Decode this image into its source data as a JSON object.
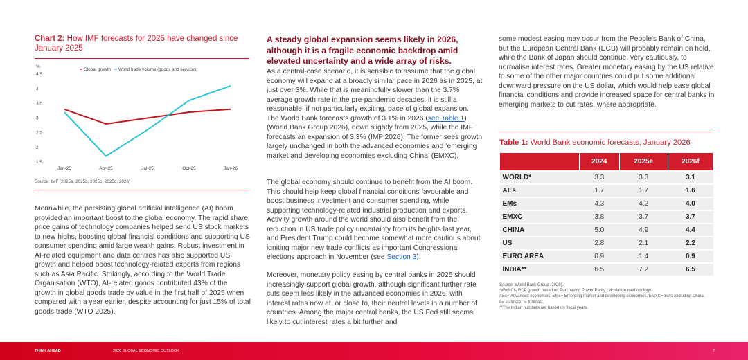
{
  "chart_data": {
    "type": "line",
    "title_prefix": "Chart 2:",
    "title": "How IMF forecasts for 2025 have changed since January 2025",
    "y_unit": "%",
    "categories": [
      "Jan-25",
      "Apr-25",
      "Jul-25",
      "Oct-25",
      "Jan-26"
    ],
    "series": [
      {
        "name": "Global growth",
        "color": "#c0171d",
        "values": [
          3.3,
          2.8,
          3.0,
          3.2,
          3.3
        ]
      },
      {
        "name": "World trade volume (goods and services)",
        "color": "#2cc5d8",
        "values": [
          3.2,
          1.7,
          2.6,
          3.6,
          4.1
        ]
      }
    ],
    "ylim": [
      1.5,
      4.5
    ],
    "yticks": [
      1.5,
      2,
      2.5,
      3,
      3.5,
      4,
      4.5
    ],
    "grid": false,
    "source": "Source: IMF (2025a, 2025b, 2025c, 2025d, 2026)"
  },
  "left": {
    "paragraph": "Meanwhile, the persisting global artificial intelligence (AI) boom provided an important boost to the global economy. The rapid share price gains of technology companies helped send US stock markets to new highs, boosting global financial conditions and supporting US consumer spending amid large wealth gains. Robust investment in AI-related equipment and data centres has also supported US growth and helped boost technology-related exports from regions such as Asia Pacific. Strikingly, according to the World Trade Organisation (WTO), AI-related goods contributed 43% of the growth in global goods trade by value in the first half of 2025 when compared with a year earlier, despite accounting for just 15% of total goods trade (WTO 2025)."
  },
  "middle": {
    "heading": "A steady global expansion seems likely in 2026, although it is a fragile economic backdrop amid elevated uncertainty and a wide array of risks.",
    "paragraphs": [
      [
        "As a central-case scenario, it is sensible to assume that the global economy will expand at a broadly similar pace in 2026 as in 2025, at just over 3%. While that is meaningfully slower than the 3.7% average growth rate in the pre-pandemic decades, it is still a reasonable, if not particularly exciting, pace of global expansion. The World Bank forecasts growth of 3.1% in 2026 (",
        "see Table 1",
        ") (World Bank Group 2026), down slightly from 2025, while the IMF forecasts an expansion of 3.3% (IMF 2026). The former sees growth largely unchanged in both the advanced economies and ‘emerging market and developing economies excluding China’ (EMXC)."
      ],
      [
        "The global economy should continue to benefit from the AI boom. This should help keep global financial conditions favourable and boost business investment and consumer spending, while supporting technology-related industrial production and exports. Activity growth around the world should also benefit from the reduction in US trade policy uncertainty from its heights last year, and President Trump could become somewhat more cautious about igniting major new trade conflicts as important Congressional elections approach in November (see ",
        "Section 3",
        ")."
      ],
      [
        "Moreover, monetary policy easing by central banks in 2025 should increasingly support global growth, although significant further rate cuts seem less likely in the advanced economies in 2026, with interest rates now at, or close to, their neutral levels in a number of countries. Among the major central banks, the US Fed still seems likely to cut interest rates a bit further and"
      ]
    ]
  },
  "right": {
    "paragraph": "some modest easing may occur from the People’s Bank of China, but the European Central Bank (ECB) will probably remain on hold, while the Bank of Japan should continue, very cautiously, to normalise interest rates. Greater monetary easing by the US relative to some of the other major countries could put some additional downward pressure on the US dollar, which would help ease global financial conditions and provide increased space for central banks in emerging markets to cut rates, where appropriate.",
    "table": {
      "title_prefix": "Table 1:",
      "title": "World Bank economic forecasts, January 2026",
      "columns": [
        "2024",
        "2025e",
        "2026f"
      ],
      "rows": [
        [
          "WORLD*",
          "3.3",
          "3.3",
          "3.1"
        ],
        [
          "AEs",
          "1.7",
          "1.7",
          "1.6"
        ],
        [
          "EMs",
          "4.3",
          "4.2",
          "4.0"
        ],
        [
          "EMXC",
          "3.8",
          "3.7",
          "3.7"
        ],
        [
          "CHINA",
          "5.0",
          "4.9",
          "4.4"
        ],
        [
          "US",
          "2.8",
          "2.1",
          "2.2"
        ],
        [
          "EURO AREA",
          "0.9",
          "1.4",
          "0.9"
        ],
        [
          "INDIA**",
          "6.5",
          "7.2",
          "6.5"
        ]
      ],
      "notes": [
        "Source: World Bank Group (2026).",
        "*World’ is GDP growth based on Purchasing Power Parity calculation methodology.",
        "AEs= Advanced economies, EMs= Emerging market and developing economies, EMXC= EMs excluding China.",
        "e= estimate, f= forecast.",
        "**The Indian numbers are based on fiscal years."
      ]
    }
  },
  "footer": {
    "brand": "THINK AHEAD",
    "publication": "2026 GLOBAL ECONOMIC OUTLOOK",
    "page": "7"
  }
}
